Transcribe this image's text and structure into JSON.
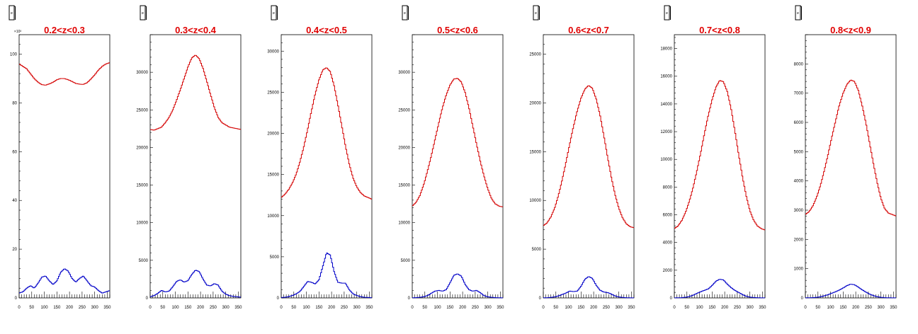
{
  "figure": {
    "title_color": "#e00000",
    "series_colors": {
      "upper": "#d40000",
      "lower": "#0000c8"
    },
    "stats_box_icon": "stats-box-icon",
    "stats_box_text": "e"
  },
  "chart_data": [
    {
      "type": "line",
      "title": "0.2<z<0.3",
      "xlim": [
        0,
        360
      ],
      "xticks": [
        0,
        50,
        100,
        150,
        200,
        250,
        300,
        350
      ],
      "xtick_labels": [
        "0",
        "50",
        "100",
        "150",
        "200",
        "250",
        "300",
        "350"
      ],
      "ylim": [
        0,
        108
      ],
      "yticks": [
        0,
        20,
        40,
        60,
        80,
        100
      ],
      "ytick_labels": [
        "0",
        "20",
        "40",
        "60",
        "80",
        "100"
      ],
      "y_exponent_label": "×10³",
      "series": [
        {
          "color": "upper",
          "x": [
            0,
            15,
            30,
            45,
            60,
            75,
            90,
            105,
            120,
            135,
            150,
            165,
            180,
            195,
            210,
            225,
            240,
            255,
            270,
            285,
            300,
            315,
            330,
            345,
            360
          ],
          "y": [
            96,
            95,
            94,
            92,
            90,
            88.5,
            87.5,
            87.3,
            87.8,
            88.5,
            89.5,
            90,
            90,
            89.5,
            88.8,
            88,
            87.7,
            87.6,
            88.3,
            89.8,
            91.5,
            93.5,
            95,
            96,
            96.5
          ]
        },
        {
          "color": "lower",
          "x": [
            0,
            15,
            30,
            45,
            60,
            75,
            90,
            105,
            120,
            135,
            150,
            165,
            180,
            195,
            210,
            225,
            240,
            255,
            270,
            285,
            300,
            315,
            330,
            345,
            360
          ],
          "y": [
            2,
            2.5,
            4,
            5,
            4,
            6,
            8.5,
            9,
            7,
            5.5,
            7,
            10.5,
            12,
            11,
            8,
            6.5,
            8,
            9,
            7,
            5,
            4.5,
            3,
            2,
            2.5,
            3
          ]
        }
      ]
    },
    {
      "type": "line",
      "title": "0.3<z<0.4",
      "xlim": [
        0,
        360
      ],
      "xticks": [
        0,
        50,
        100,
        150,
        200,
        250,
        300,
        350
      ],
      "xtick_labels": [
        "0",
        "50",
        "100",
        "150",
        "200",
        "250",
        "300",
        "350"
      ],
      "ylim": [
        0,
        35000
      ],
      "yticks": [
        0,
        5000,
        10000,
        15000,
        20000,
        25000,
        30000
      ],
      "ytick_labels": [
        "0",
        "5000",
        "10000",
        "15000",
        "20000",
        "25000",
        "30000"
      ],
      "series": [
        {
          "color": "upper",
          "x": [
            0,
            15,
            30,
            45,
            60,
            75,
            90,
            105,
            120,
            135,
            150,
            165,
            180,
            195,
            210,
            225,
            240,
            255,
            270,
            285,
            300,
            315,
            330,
            345,
            360
          ],
          "y": [
            22400,
            22300,
            22500,
            22700,
            23300,
            24000,
            25000,
            26300,
            27700,
            29200,
            30700,
            31900,
            32300,
            31800,
            30500,
            28800,
            27000,
            25300,
            24000,
            23300,
            23000,
            22700,
            22600,
            22500,
            22400
          ]
        },
        {
          "color": "lower",
          "x": [
            0,
            15,
            30,
            45,
            60,
            75,
            90,
            105,
            120,
            135,
            150,
            165,
            180,
            195,
            210,
            225,
            240,
            255,
            270,
            285,
            300,
            315,
            330,
            345,
            360
          ],
          "y": [
            150,
            300,
            600,
            1000,
            800,
            900,
            1500,
            2200,
            2400,
            2100,
            2300,
            3100,
            3700,
            3500,
            2500,
            1700,
            1600,
            1900,
            1700,
            900,
            500,
            300,
            200,
            150,
            100
          ]
        }
      ]
    },
    {
      "type": "line",
      "title": "0.4<z<0.5",
      "xlim": [
        0,
        360
      ],
      "xticks": [
        0,
        50,
        100,
        150,
        200,
        250,
        300,
        350
      ],
      "xtick_labels": [
        "0",
        "50",
        "100",
        "150",
        "200",
        "250",
        "300",
        "350"
      ],
      "ylim": [
        0,
        32000
      ],
      "yticks": [
        0,
        5000,
        10000,
        15000,
        20000,
        25000,
        30000
      ],
      "ytick_labels": [
        "0",
        "5000",
        "10000",
        "15000",
        "20000",
        "25000",
        "30000"
      ],
      "series": [
        {
          "color": "upper",
          "x": [
            0,
            15,
            30,
            45,
            60,
            75,
            90,
            105,
            120,
            135,
            150,
            165,
            180,
            195,
            210,
            225,
            240,
            255,
            270,
            285,
            300,
            315,
            330,
            345,
            360
          ],
          "y": [
            12200,
            12600,
            13200,
            14000,
            15100,
            16600,
            18400,
            20500,
            22700,
            24800,
            26500,
            27700,
            28000,
            27500,
            25800,
            23500,
            21000,
            18500,
            16300,
            14600,
            13500,
            12800,
            12400,
            12200,
            12000
          ]
        },
        {
          "color": "lower",
          "x": [
            0,
            15,
            30,
            45,
            60,
            75,
            90,
            105,
            120,
            135,
            150,
            165,
            180,
            195,
            210,
            225,
            240,
            255,
            270,
            285,
            300,
            315,
            330,
            345,
            360
          ],
          "y": [
            50,
            80,
            150,
            300,
            500,
            800,
            1400,
            2000,
            1900,
            1700,
            2200,
            3800,
            5500,
            5200,
            3200,
            1900,
            1800,
            1800,
            1000,
            500,
            300,
            150,
            80,
            50,
            30
          ]
        }
      ]
    },
    {
      "type": "line",
      "title": "0.5<z<0.6",
      "xlim": [
        0,
        360
      ],
      "xticks": [
        0,
        50,
        100,
        150,
        200,
        250,
        300,
        350
      ],
      "xtick_labels": [
        "0",
        "50",
        "100",
        "150",
        "200",
        "250",
        "300",
        "350"
      ],
      "ylim": [
        0,
        35000
      ],
      "yticks": [
        0,
        5000,
        10000,
        15000,
        20000,
        25000,
        30000
      ],
      "ytick_labels": [
        "0",
        "5000",
        "10000",
        "15000",
        "20000",
        "25000",
        "30000"
      ],
      "series": [
        {
          "color": "upper",
          "x": [
            0,
            15,
            30,
            45,
            60,
            75,
            90,
            105,
            120,
            135,
            150,
            165,
            180,
            195,
            210,
            225,
            240,
            255,
            270,
            285,
            300,
            315,
            330,
            345,
            360
          ],
          "y": [
            12200,
            12700,
            13600,
            15000,
            16800,
            18800,
            21000,
            23200,
            25300,
            27000,
            28300,
            29100,
            29200,
            28700,
            27300,
            25300,
            22900,
            20500,
            18200,
            16200,
            14500,
            13200,
            12500,
            12200,
            12100
          ]
        },
        {
          "color": "lower",
          "x": [
            0,
            15,
            30,
            45,
            60,
            75,
            90,
            105,
            120,
            135,
            150,
            165,
            180,
            195,
            210,
            225,
            240,
            255,
            270,
            285,
            300,
            315,
            330,
            345,
            360
          ],
          "y": [
            20,
            40,
            80,
            150,
            300,
            600,
            900,
            1000,
            900,
            1100,
            2000,
            3000,
            3200,
            2900,
            1800,
            1100,
            900,
            1000,
            700,
            300,
            150,
            80,
            40,
            20,
            10
          ]
        }
      ]
    },
    {
      "type": "line",
      "title": "0.6<z<0.7",
      "xlim": [
        0,
        360
      ],
      "xticks": [
        0,
        50,
        100,
        150,
        200,
        250,
        300,
        350
      ],
      "xtick_labels": [
        "0",
        "50",
        "100",
        "150",
        "200",
        "250",
        "300",
        "350"
      ],
      "ylim": [
        0,
        27000
      ],
      "yticks": [
        0,
        5000,
        10000,
        15000,
        20000,
        25000
      ],
      "ytick_labels": [
        "0",
        "5000",
        "10000",
        "15000",
        "20000",
        "25000"
      ],
      "series": [
        {
          "color": "upper",
          "x": [
            0,
            15,
            30,
            45,
            60,
            75,
            90,
            105,
            120,
            135,
            150,
            165,
            180,
            195,
            210,
            225,
            240,
            255,
            270,
            285,
            300,
            315,
            330,
            345,
            360
          ],
          "y": [
            7400,
            7700,
            8300,
            9200,
            10500,
            12100,
            13900,
            15800,
            17600,
            19200,
            20500,
            21400,
            21800,
            21500,
            20400,
            18800,
            16700,
            14500,
            12400,
            10600,
            9200,
            8200,
            7600,
            7300,
            7200
          ]
        },
        {
          "color": "lower",
          "x": [
            0,
            15,
            30,
            45,
            60,
            75,
            90,
            105,
            120,
            135,
            150,
            165,
            180,
            195,
            210,
            225,
            240,
            255,
            270,
            285,
            300,
            315,
            330,
            345,
            360
          ],
          "y": [
            10,
            20,
            50,
            100,
            200,
            350,
            500,
            700,
            650,
            700,
            1200,
            1900,
            2200,
            2000,
            1300,
            800,
            600,
            550,
            400,
            200,
            100,
            50,
            20,
            10,
            5
          ]
        }
      ]
    },
    {
      "type": "line",
      "title": "0.7<z<0.8",
      "xlim": [
        0,
        360
      ],
      "xticks": [
        0,
        50,
        100,
        150,
        200,
        250,
        300,
        350
      ],
      "xtick_labels": [
        "0",
        "50",
        "100",
        "150",
        "200",
        "250",
        "300",
        "350"
      ],
      "ylim": [
        0,
        19000
      ],
      "yticks": [
        0,
        2000,
        4000,
        6000,
        8000,
        10000,
        12000,
        14000,
        16000,
        18000
      ],
      "ytick_labels": [
        "0",
        "2000",
        "4000",
        "6000",
        "8000",
        "10000",
        "12000",
        "14000",
        "16000",
        "18000"
      ],
      "series": [
        {
          "color": "upper",
          "x": [
            0,
            15,
            30,
            45,
            60,
            75,
            90,
            105,
            120,
            135,
            150,
            165,
            180,
            195,
            210,
            225,
            240,
            255,
            270,
            285,
            300,
            315,
            330,
            345,
            360
          ],
          "y": [
            5000,
            5200,
            5600,
            6200,
            7000,
            8000,
            9200,
            10500,
            11900,
            13200,
            14300,
            15200,
            15700,
            15600,
            14900,
            13700,
            12100,
            10400,
            8800,
            7400,
            6300,
            5600,
            5200,
            5000,
            4900
          ]
        },
        {
          "color": "lower",
          "x": [
            0,
            15,
            30,
            45,
            60,
            75,
            90,
            105,
            120,
            135,
            150,
            165,
            180,
            195,
            210,
            225,
            240,
            255,
            270,
            285,
            300,
            315,
            330,
            345,
            360
          ],
          "y": [
            5,
            10,
            20,
            50,
            100,
            200,
            330,
            450,
            550,
            650,
            900,
            1200,
            1350,
            1300,
            1000,
            750,
            550,
            400,
            250,
            120,
            60,
            30,
            15,
            5,
            3
          ]
        }
      ]
    },
    {
      "type": "line",
      "title": "0.8<z<0.9",
      "xlim": [
        0,
        360
      ],
      "xticks": [
        0,
        50,
        100,
        150,
        200,
        250,
        300,
        350
      ],
      "xtick_labels": [
        "0",
        "50",
        "100",
        "150",
        "200",
        "250",
        "300",
        "350"
      ],
      "ylim": [
        0,
        9000
      ],
      "yticks": [
        0,
        1000,
        2000,
        3000,
        4000,
        5000,
        6000,
        7000,
        8000
      ],
      "ytick_labels": [
        "0",
        "1000",
        "2000",
        "3000",
        "4000",
        "5000",
        "6000",
        "7000",
        "8000"
      ],
      "series": [
        {
          "color": "upper",
          "x": [
            0,
            15,
            30,
            45,
            60,
            75,
            90,
            105,
            120,
            135,
            150,
            165,
            180,
            195,
            210,
            225,
            240,
            255,
            270,
            285,
            300,
            315,
            330,
            345,
            360
          ],
          "y": [
            2850,
            2950,
            3150,
            3450,
            3850,
            4350,
            4900,
            5500,
            6050,
            6600,
            7000,
            7300,
            7450,
            7400,
            7100,
            6600,
            6000,
            5300,
            4600,
            3950,
            3400,
            3050,
            2900,
            2850,
            2800
          ]
        },
        {
          "color": "lower",
          "x": [
            0,
            15,
            30,
            45,
            60,
            75,
            90,
            105,
            120,
            135,
            150,
            165,
            180,
            195,
            210,
            225,
            240,
            255,
            270,
            285,
            300,
            315,
            330,
            345,
            360
          ],
          "y": [
            3,
            5,
            10,
            20,
            40,
            70,
            110,
            160,
            210,
            270,
            340,
            420,
            470,
            450,
            370,
            280,
            200,
            130,
            80,
            40,
            20,
            10,
            5,
            3,
            2
          ]
        }
      ]
    }
  ]
}
